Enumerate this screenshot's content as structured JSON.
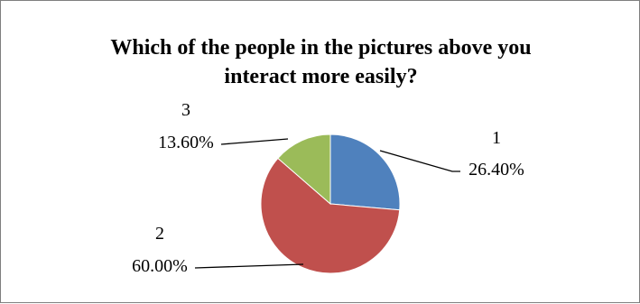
{
  "chart_data": {
    "type": "pie",
    "title_lines": [
      "Which of the people in the pictures above you",
      "interact more easily?"
    ],
    "slices": [
      {
        "category": "1",
        "value": 26.4,
        "label": "26.40%",
        "color": "#4f81bd"
      },
      {
        "category": "2",
        "value": 60.0,
        "label": "60.00%",
        "color": "#c0504d"
      },
      {
        "category": "3",
        "value": 13.6,
        "label": "13.60%",
        "color": "#9bbb59"
      }
    ],
    "legend": "none"
  }
}
